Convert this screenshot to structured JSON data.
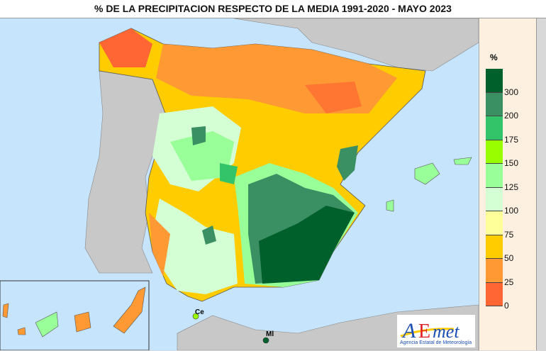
{
  "title": "% DE LA PRECIPITACION RESPECTO DE LA MEDIA 1991-2020  -  MAYO 2023",
  "legend": {
    "unit": "%",
    "bins": [
      {
        "color": "#00602c",
        "label": "300"
      },
      {
        "color": "#3a8f63",
        "label": "200"
      },
      {
        "color": "#33c46a",
        "label": "175"
      },
      {
        "color": "#99ff00",
        "label": "150"
      },
      {
        "color": "#99ff99",
        "label": "125"
      },
      {
        "color": "#d4ffd4",
        "label": "100"
      },
      {
        "color": "#ffff99",
        "label": "75"
      },
      {
        "color": "#ffcc00",
        "label": "50"
      },
      {
        "color": "#ff9933",
        "label": "25"
      },
      {
        "color": "#ff6633",
        "label": "0"
      }
    ]
  },
  "map": {
    "sea_color": "#c6e4fb",
    "foreign_land_color": "#c8c8c8",
    "labels": {
      "ceuta": "Ce",
      "melilla": "Ml"
    }
  },
  "logo": {
    "text": "AEmet",
    "subtitle": "Agencia Estatal de Meteorología"
  }
}
